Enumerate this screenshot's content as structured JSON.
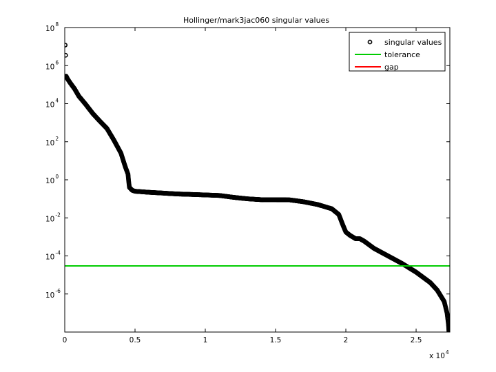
{
  "chart_data": {
    "type": "scatter",
    "title": "Hollinger/mark3jac060 singular values",
    "xlabel": "",
    "ylabel": "",
    "x_scale": "linear",
    "y_scale": "log",
    "xlim": [
      0,
      27400
    ],
    "ylim": [
      1e-08,
      100000000.0
    ],
    "x_ticks": [
      {
        "value": 0,
        "label": "0"
      },
      {
        "value": 5000,
        "label": "0.5"
      },
      {
        "value": 10000,
        "label": "1"
      },
      {
        "value": 15000,
        "label": "1.5"
      },
      {
        "value": 20000,
        "label": "2"
      },
      {
        "value": 25000,
        "label": "2.5"
      }
    ],
    "x_multiplier_label": "x 10",
    "x_multiplier_exponent": "4",
    "y_ticks": [
      {
        "value": 100000000.0,
        "exp": "8"
      },
      {
        "value": 1000000.0,
        "exp": "6"
      },
      {
        "value": 10000.0,
        "exp": "4"
      },
      {
        "value": 100.0,
        "exp": "2"
      },
      {
        "value": 1,
        "exp": "0"
      },
      {
        "value": 0.01,
        "exp": "-2"
      },
      {
        "value": 0.0001,
        "exp": "-4"
      },
      {
        "value": 1e-06,
        "exp": "-6"
      }
    ],
    "y_tick_base": "10",
    "grid": false,
    "legend_position": "top-right",
    "legend": [
      {
        "label": "singular values",
        "marker": "circle",
        "color": "#000000"
      },
      {
        "label": "tolerance",
        "marker": "line",
        "color": "#00cc00"
      },
      {
        "label": "gap",
        "marker": "line",
        "color": "#ff0000"
      }
    ],
    "series": [
      {
        "name": "singular values",
        "color": "#000000",
        "outliers": [
          [
            30,
            12000000
          ],
          [
            60,
            3500000
          ]
        ],
        "curve": [
          [
            100,
            280000
          ],
          [
            200,
            200000
          ],
          [
            400,
            120000
          ],
          [
            700,
            60000
          ],
          [
            1000,
            25000
          ],
          [
            1500,
            9000
          ],
          [
            2000,
            3000
          ],
          [
            2500,
            1200
          ],
          [
            3000,
            500
          ],
          [
            3500,
            120
          ],
          [
            4000,
            25
          ],
          [
            4300,
            5
          ],
          [
            4500,
            2
          ],
          [
            4550,
            0.8
          ],
          [
            4600,
            0.4
          ],
          [
            4800,
            0.28
          ],
          [
            5000,
            0.25
          ],
          [
            6000,
            0.22
          ],
          [
            7000,
            0.2
          ],
          [
            8000,
            0.18
          ],
          [
            9000,
            0.17
          ],
          [
            10000,
            0.16
          ],
          [
            11000,
            0.15
          ],
          [
            12000,
            0.12
          ],
          [
            13000,
            0.1
          ],
          [
            14000,
            0.09
          ],
          [
            15000,
            0.09
          ],
          [
            16000,
            0.088
          ],
          [
            17000,
            0.07
          ],
          [
            18000,
            0.05
          ],
          [
            19000,
            0.03
          ],
          [
            19500,
            0.015
          ],
          [
            19800,
            0.004
          ],
          [
            20000,
            0.0018
          ],
          [
            20300,
            0.0012
          ],
          [
            20700,
            0.0008
          ],
          [
            21000,
            0.0008
          ],
          [
            21300,
            0.0006
          ],
          [
            22000,
            0.00025
          ],
          [
            23000,
            0.0001
          ],
          [
            24000,
            4e-05
          ],
          [
            25000,
            1.4e-05
          ],
          [
            26000,
            4e-06
          ],
          [
            26500,
            1.6e-06
          ],
          [
            27000,
            4e-07
          ],
          [
            27200,
            1e-07
          ],
          [
            27300,
            2.5e-08
          ],
          [
            27350,
            7e-09
          ]
        ]
      },
      {
        "name": "tolerance",
        "color": "#00cc00",
        "y": 3e-05
      }
    ]
  }
}
